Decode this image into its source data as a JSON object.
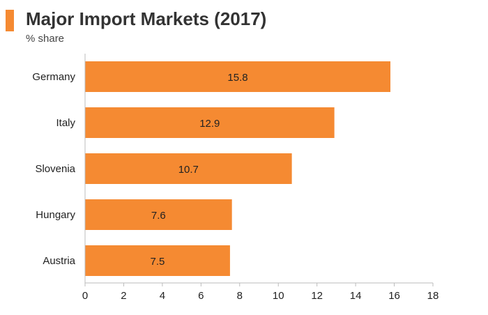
{
  "header": {
    "title": "Major Import Markets (2017)",
    "subtitle": "% share"
  },
  "colors": {
    "accent": "#F58A32",
    "bar": "#F58A32",
    "axis": "#BBBBBB",
    "text": "#222222"
  },
  "chart_data": {
    "type": "bar",
    "orientation": "horizontal",
    "title": "Major Import Markets (2017)",
    "subtitle": "% share",
    "categories": [
      "Germany",
      "Italy",
      "Slovenia",
      "Hungary",
      "Austria"
    ],
    "values": [
      15.8,
      12.9,
      10.7,
      7.6,
      7.5
    ],
    "value_labels": [
      "15.8",
      "12.9",
      "10.7",
      "7.6",
      "7.5"
    ],
    "xlim": [
      0,
      18
    ],
    "xticks": [
      0,
      2,
      4,
      6,
      8,
      10,
      12,
      14,
      16,
      18
    ],
    "grid": false,
    "legend": "none"
  }
}
